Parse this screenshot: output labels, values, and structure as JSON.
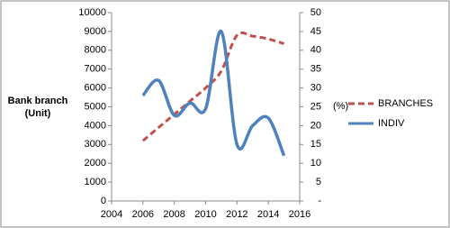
{
  "chart_data": {
    "type": "line",
    "ylabel": [
      "Bank branch",
      "(Unit)"
    ],
    "y2label": "(%)",
    "x": [
      2006,
      2007,
      2008,
      2009,
      2010,
      2011,
      2012,
      2013,
      2014,
      2015
    ],
    "series": [
      {
        "name": "BRANCHES",
        "color": "#c0504d",
        "dashed": true,
        "axis": "y",
        "values": [
          3200,
          3900,
          4600,
          5300,
          6000,
          6900,
          8800,
          8750,
          8600,
          8350
        ]
      },
      {
        "name": "INDIV",
        "color": "#4f81bd",
        "dashed": false,
        "axis": "y2",
        "values": [
          28,
          32,
          22.7,
          26,
          24.5,
          45,
          15,
          20,
          22,
          12
        ]
      }
    ],
    "xlim": [
      2004,
      2016
    ],
    "xticks": [
      2004,
      2006,
      2008,
      2010,
      2012,
      2014,
      2016
    ],
    "ylim": [
      0,
      10000
    ],
    "yticks": [
      0,
      1000,
      2000,
      3000,
      4000,
      5000,
      6000,
      7000,
      8000,
      9000,
      10000
    ],
    "y2lim": [
      0,
      50
    ],
    "y2ticks": [
      {
        "value": 0,
        "label": "-"
      },
      5,
      10,
      15,
      20,
      25,
      30,
      35,
      40,
      45,
      50
    ],
    "grid": false,
    "legend": "right"
  }
}
